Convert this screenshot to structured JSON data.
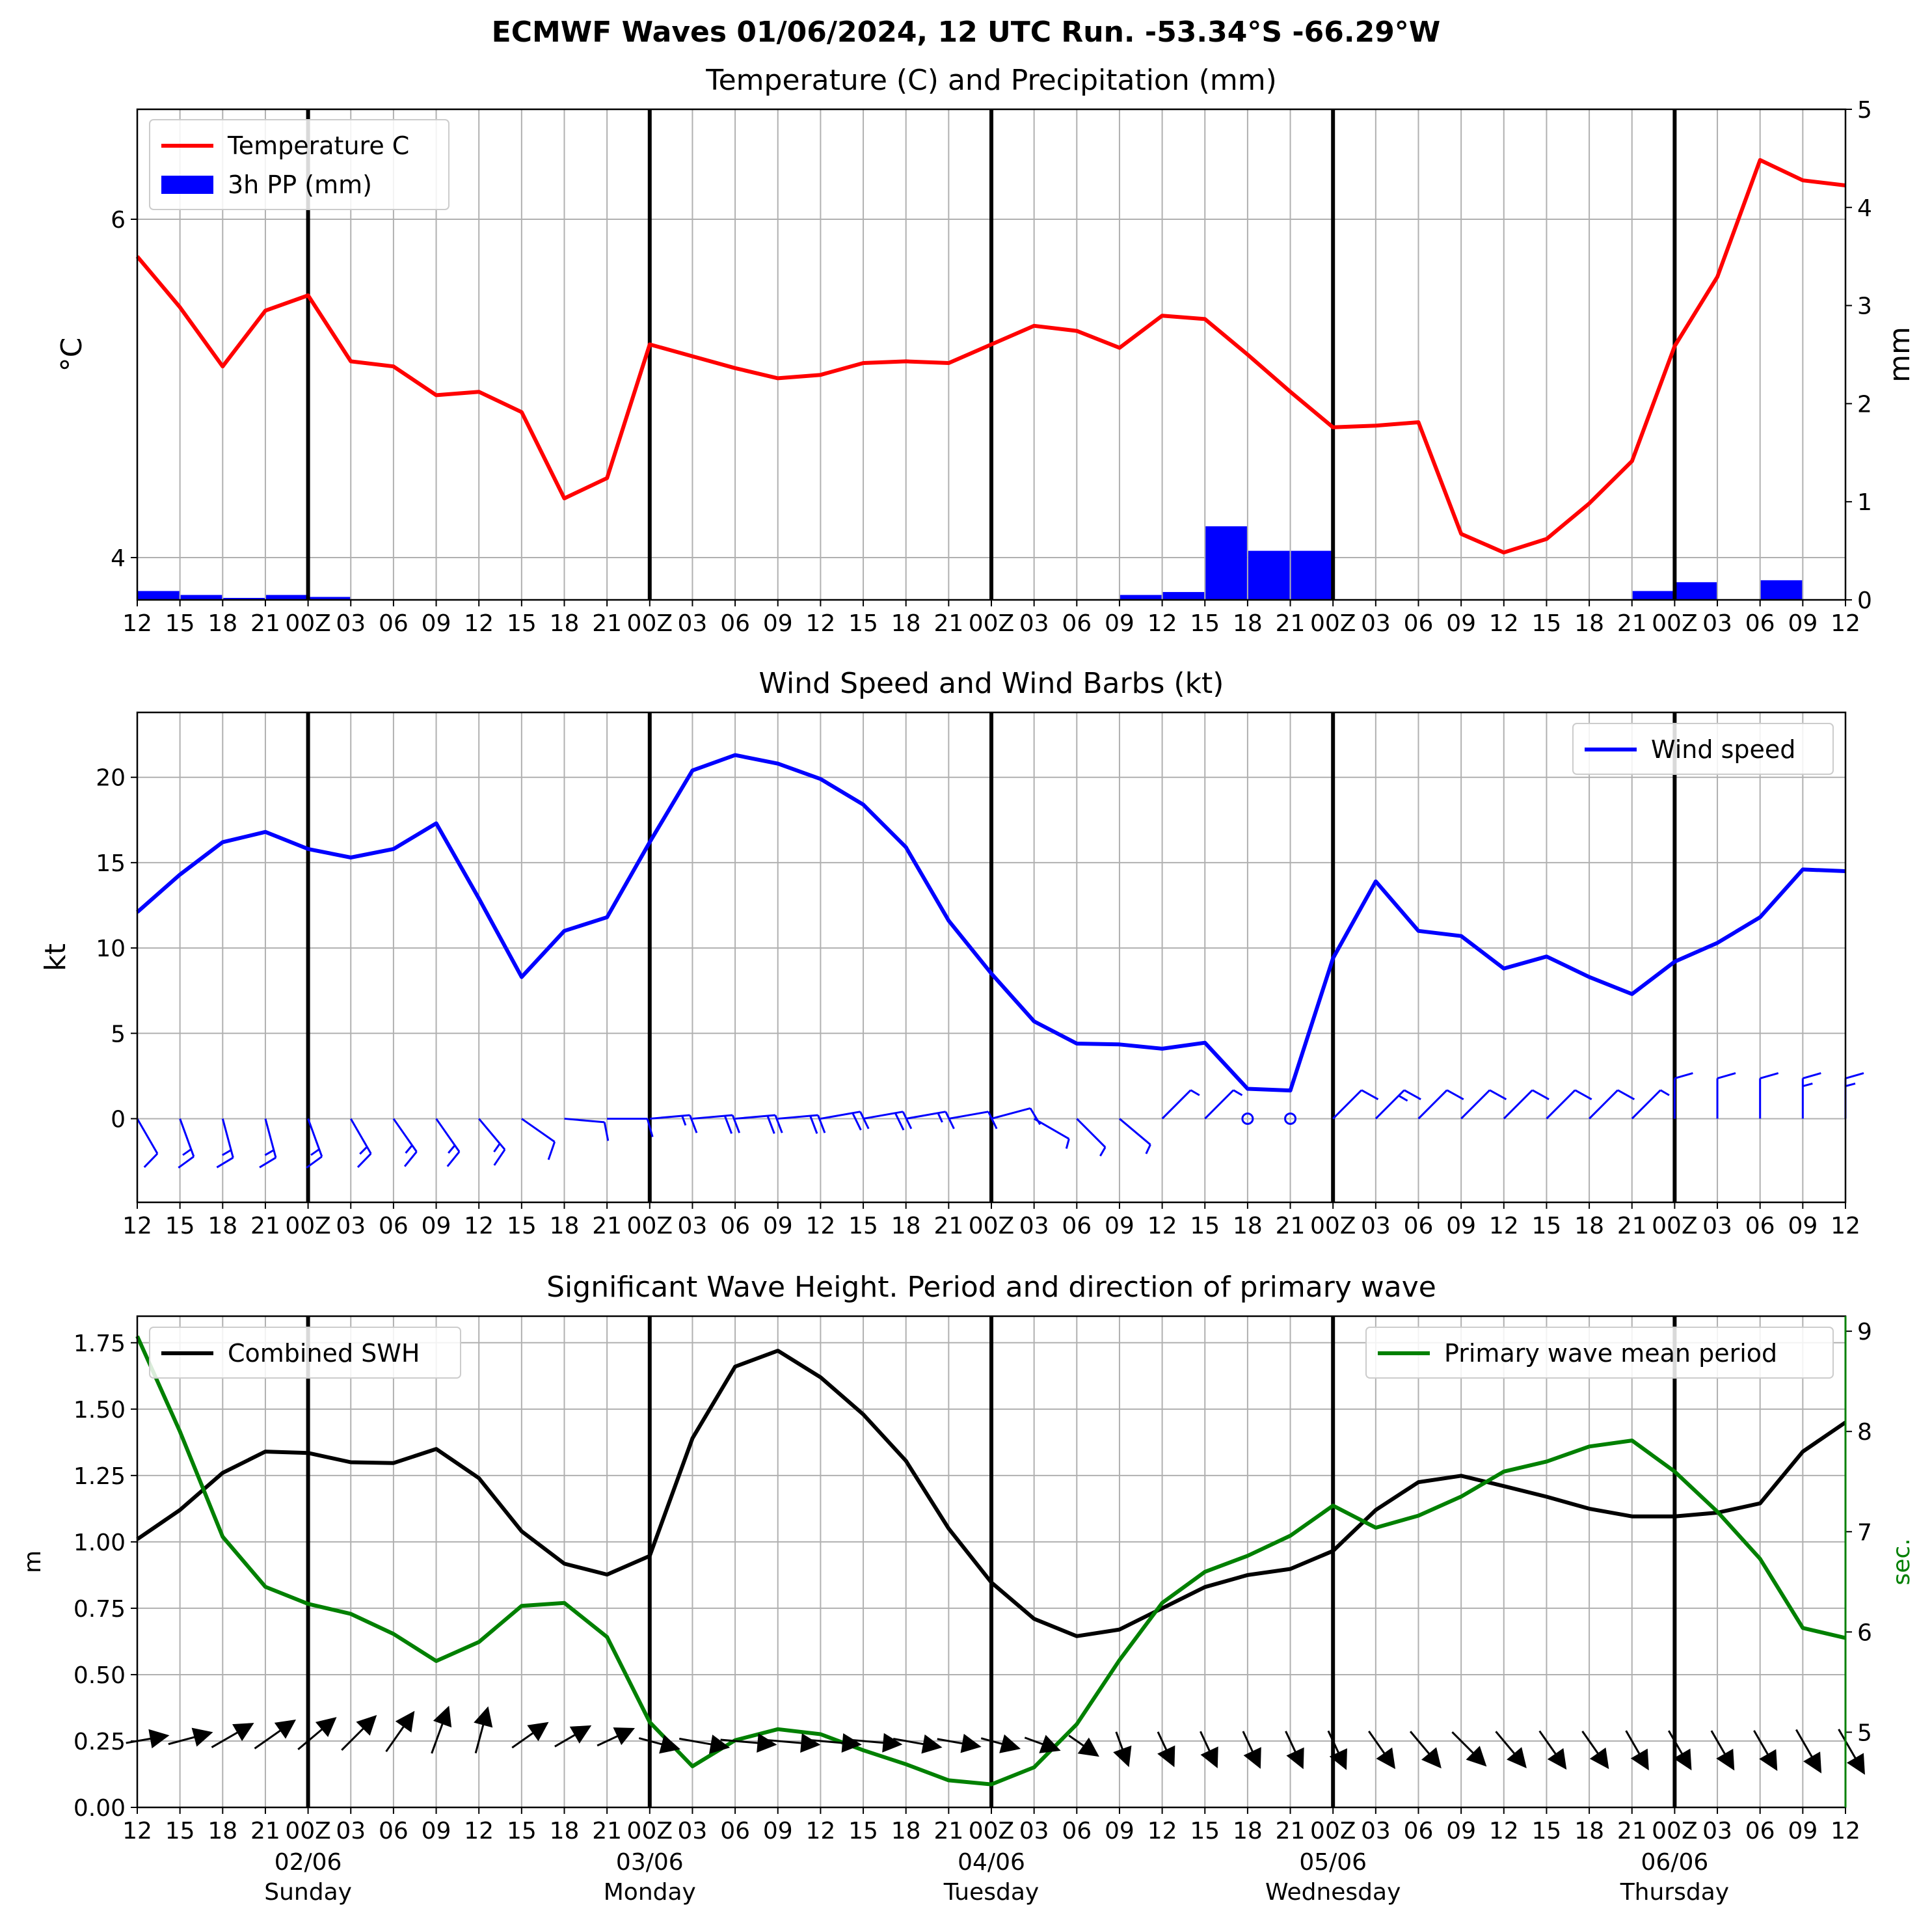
{
  "figure": {
    "title": "ECMWF Waves 01/06/2024, 12 UTC Run. -53.34°S -66.29°W"
  },
  "time_axis": {
    "tick_labels": [
      "12",
      "15",
      "18",
      "21",
      "00Z",
      "03",
      "06",
      "09",
      "12",
      "15",
      "18",
      "21",
      "00Z",
      "03",
      "06",
      "09",
      "12",
      "15",
      "18",
      "21",
      "00Z",
      "03",
      "06",
      "09",
      "12",
      "15",
      "18",
      "21",
      "00Z",
      "03",
      "06",
      "09",
      "12",
      "15",
      "18",
      "21",
      "00Z",
      "03",
      "06",
      "09",
      "12"
    ],
    "day_labels": [
      {
        "date": "02/06",
        "day": "Sunday",
        "at": 4
      },
      {
        "date": "03/06",
        "day": "Monday",
        "at": 12
      },
      {
        "date": "04/06",
        "day": "Tuesday",
        "at": 20
      },
      {
        "date": "05/06",
        "day": "Wednesday",
        "at": 28
      },
      {
        "date": "06/06",
        "day": "Thursday",
        "at": 36
      }
    ],
    "midnight_indices": [
      4,
      12,
      20,
      28,
      36
    ]
  },
  "colors": {
    "temperature": "#ff0000",
    "precip": "#0000ff",
    "wind": "#0000ff",
    "swh": "#000000",
    "period": "#008000",
    "grid": "#b0b0b0"
  },
  "chart_data": [
    {
      "type": "line",
      "title": "Temperature (C) and Precipitation (mm)",
      "ylabel": "°C",
      "ylabel_right": "mm",
      "ylim": [
        3.75,
        6.65
      ],
      "ylim_right": [
        0,
        5
      ],
      "yticks": [
        4,
        6
      ],
      "yticks_right": [
        0,
        1,
        2,
        3,
        4,
        5
      ],
      "legend": "top-left",
      "series": [
        {
          "name": "Temperature C",
          "kind": "line",
          "axis": "left",
          "values": [
            5.78,
            5.48,
            5.13,
            5.46,
            5.55,
            5.16,
            5.13,
            4.96,
            4.98,
            4.86,
            4.35,
            4.47,
            5.26,
            5.19,
            5.12,
            5.06,
            5.08,
            5.15,
            5.16,
            5.15,
            5.26,
            5.37,
            5.34,
            5.24,
            5.43,
            5.41,
            5.2,
            4.98,
            4.77,
            4.78,
            4.8,
            4.14,
            4.03,
            4.11,
            4.32,
            4.57,
            5.25,
            5.66,
            6.35,
            6.23,
            6.2
          ]
        },
        {
          "name": "3h PP (mm)",
          "kind": "bar",
          "axis": "right",
          "values": [
            0,
            0.09,
            0.05,
            0.02,
            0.05,
            0.03,
            0,
            0,
            0,
            0,
            0,
            0,
            0,
            0,
            0,
            0,
            0,
            0,
            0,
            0,
            0,
            0,
            0,
            0,
            0.05,
            0.08,
            0.75,
            0.5,
            0.5,
            0,
            0,
            0,
            0,
            0,
            0,
            0,
            0.09,
            0.18,
            0,
            0.2,
            0
          ]
        }
      ]
    },
    {
      "type": "line",
      "title": "Wind Speed and Wind Barbs (kt)",
      "ylabel": "kt",
      "ylim": [
        -4.9,
        23.8
      ],
      "yticks": [
        0,
        5,
        10,
        15,
        20
      ],
      "legend": "top-right",
      "series": [
        {
          "name": "Wind speed",
          "kind": "line",
          "values": [
            12.1,
            14.3,
            16.2,
            16.8,
            15.8,
            15.3,
            15.8,
            17.3,
            12.9,
            8.3,
            11.0,
            11.8,
            16.2,
            20.4,
            21.3,
            20.8,
            19.9,
            18.4,
            15.9,
            11.6,
            8.5,
            5.7,
            4.4,
            4.35,
            4.1,
            4.45,
            1.75,
            1.65,
            9.4,
            13.9,
            11.0,
            10.7,
            8.8,
            9.5,
            8.3,
            7.3,
            9.2,
            10.3,
            11.8,
            14.6,
            14.5
          ]
        }
      ],
      "barbs": {
        "note": "direction wind blows from, degrees",
        "dir_from": [
          150,
          160,
          165,
          165,
          160,
          150,
          145,
          145,
          140,
          125,
          95,
          90,
          85,
          85,
          85,
          85,
          80,
          80,
          80,
          80,
          75,
          120,
          135,
          130,
          45,
          45,
          0,
          0,
          45,
          45,
          45,
          45,
          45,
          45,
          45,
          45,
          0,
          0,
          0,
          0,
          0
        ]
      }
    },
    {
      "type": "line",
      "title": "Significant Wave Height. Period and direction of primary wave",
      "ylabel": "m",
      "ylabel_right": "sec.",
      "ylim": [
        0,
        1.85
      ],
      "ylim_right": [
        4.25,
        9.15
      ],
      "yticks": [
        0.0,
        0.25,
        0.5,
        0.75,
        1.0,
        1.25,
        1.5,
        1.75
      ],
      "yticks_right": [
        5,
        6,
        7,
        8,
        9
      ],
      "legend_left": "top-left",
      "legend_right": "top-right",
      "series": [
        {
          "name": "Combined SWH",
          "kind": "line",
          "axis": "left",
          "values": [
            1.01,
            1.12,
            1.26,
            1.34,
            1.335,
            1.3,
            1.297,
            1.35,
            1.24,
            1.04,
            0.918,
            0.877,
            0.947,
            1.39,
            1.66,
            1.72,
            1.62,
            1.48,
            1.305,
            1.05,
            0.847,
            0.71,
            0.645,
            0.67,
            0.75,
            0.83,
            0.875,
            0.898,
            0.966,
            1.12,
            1.225,
            1.249,
            1.21,
            1.17,
            1.125,
            1.096,
            1.096,
            1.11,
            1.145,
            1.34,
            1.45
          ]
        },
        {
          "name": "Primary wave mean period",
          "kind": "line",
          "axis": "right",
          "values": [
            8.95,
            8.0,
            6.95,
            6.45,
            6.28,
            6.18,
            5.98,
            5.71,
            5.9,
            6.26,
            6.29,
            5.95,
            5.1,
            4.66,
            4.92,
            5.03,
            4.98,
            4.82,
            4.68,
            4.52,
            4.48,
            4.65,
            5.08,
            5.72,
            6.29,
            6.6,
            6.76,
            6.96,
            7.26,
            7.04,
            7.16,
            7.35,
            7.6,
            7.7,
            7.85,
            7.91,
            7.6,
            7.2,
            6.73,
            6.04,
            5.94
          ]
        }
      ],
      "wave_direction": {
        "note": "direction arrow points toward, degrees clockwise from north",
        "dir_to": [
          80,
          75,
          60,
          55,
          50,
          45,
          35,
          20,
          15,
          55,
          60,
          65,
          105,
          100,
          95,
          95,
          95,
          95,
          100,
          100,
          105,
          110,
          125,
          160,
          155,
          155,
          155,
          155,
          155,
          145,
          140,
          135,
          140,
          145,
          145,
          150,
          150,
          150,
          150,
          150,
          150
        ]
      }
    }
  ]
}
